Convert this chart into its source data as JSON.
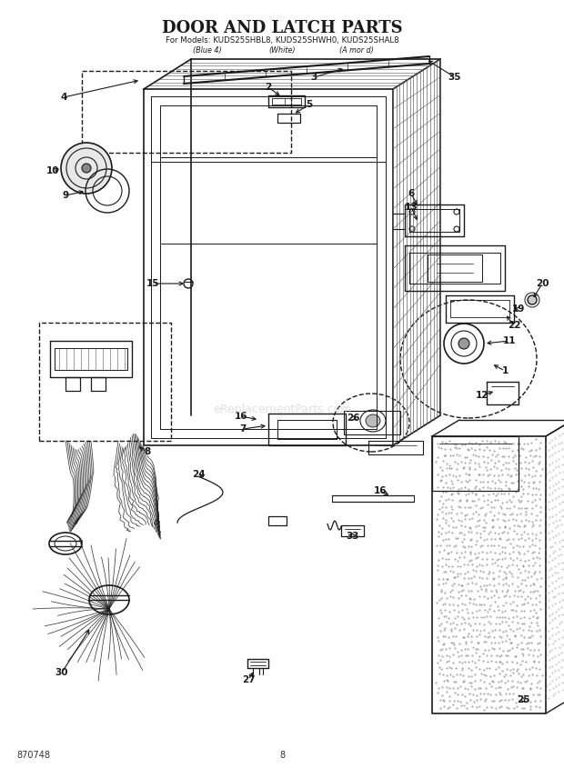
{
  "title_line1": "DOOR AND LATCH PARTS",
  "title_line2": "For Models: KUDS25SHBL8, KUDS25SHWH0, KUDS25SHAL8",
  "title_line3_left": "(Blue 4)",
  "title_line3_mid": "(White)",
  "title_line3_right": "(A mor d)",
  "part_number_footer": "870748",
  "page_number": "8",
  "watermark": "eReplacementParts.com",
  "background_color": "#ffffff",
  "line_color": "#1a1a1a",
  "label_color": "#111111"
}
